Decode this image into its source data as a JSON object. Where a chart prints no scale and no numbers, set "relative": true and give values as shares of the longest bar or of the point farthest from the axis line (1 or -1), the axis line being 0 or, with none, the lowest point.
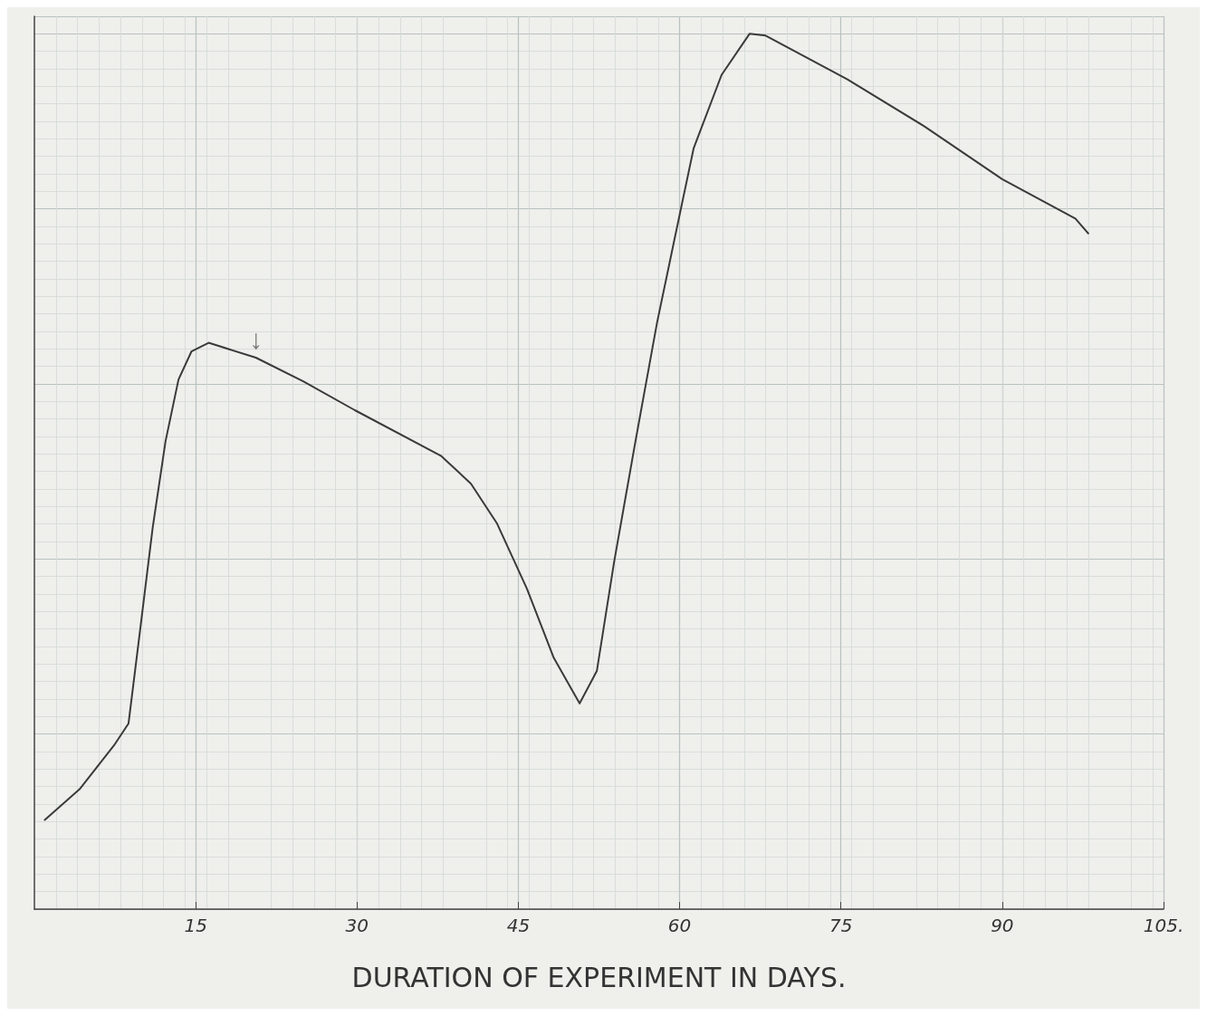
{
  "chart_data": {
    "type": "line",
    "xlabel": "DURATION OF EXPERIMENT IN DAYS.",
    "relative": true,
    "x": [
      0.96,
      4.2,
      7.4,
      8.75,
      9.8,
      11.0,
      12.2,
      13.4,
      14.6,
      16.2,
      20.6,
      25.0,
      29.8,
      37.8,
      40.6,
      43.0,
      45.8,
      48.3,
      50.7,
      52.3,
      53.9,
      55.9,
      57.9,
      59.5,
      61.3,
      63.9,
      66.5,
      68.0,
      75.6,
      82.8,
      90.0,
      96.8,
      98.0
    ],
    "series": [
      {
        "color": "#3a3a3a",
        "values": [
          0.102,
          0.137,
          0.187,
          0.212,
          0.316,
          0.436,
          0.535,
          0.605,
          0.637,
          0.647,
          0.63,
          0.603,
          0.57,
          0.518,
          0.486,
          0.441,
          0.366,
          0.287,
          0.235,
          0.272,
          0.396,
          0.535,
          0.67,
          0.764,
          0.869,
          0.953,
          1.0,
          0.998,
          0.948,
          0.894,
          0.834,
          0.789,
          0.772
        ]
      }
    ],
    "xlim": [
      0,
      105
    ],
    "xticks": [
      15,
      30,
      45,
      60,
      75,
      90,
      {
        "value": 105,
        "label": "105."
      }
    ],
    "annotations": [
      {
        "text": "↓",
        "x": 20.6,
        "y": 0.63
      }
    ],
    "grid": true,
    "marker": "none",
    "line_style": "solid"
  }
}
